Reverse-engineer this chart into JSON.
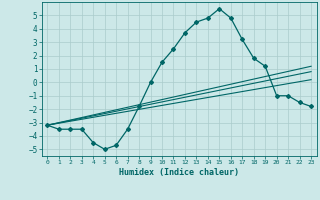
{
  "xlabel": "Humidex (Indice chaleur)",
  "bg_color": "#cce8e8",
  "grid_color": "#aacccc",
  "line_color": "#006666",
  "xlim": [
    -0.5,
    23.5
  ],
  "ylim": [
    -5.5,
    6.0
  ],
  "xticks": [
    0,
    1,
    2,
    3,
    4,
    5,
    6,
    7,
    8,
    9,
    10,
    11,
    12,
    13,
    14,
    15,
    16,
    17,
    18,
    19,
    20,
    21,
    22,
    23
  ],
  "yticks": [
    -5,
    -4,
    -3,
    -2,
    -1,
    0,
    1,
    2,
    3,
    4,
    5
  ],
  "curve1_x": [
    0,
    1,
    2,
    3,
    4,
    5,
    6,
    7,
    8,
    9,
    10,
    11,
    12,
    13,
    14,
    15,
    16,
    17,
    18,
    19,
    20,
    21,
    22,
    23
  ],
  "curve1_y": [
    -3.2,
    -3.5,
    -3.5,
    -3.5,
    -4.5,
    -5.0,
    -4.7,
    -3.5,
    -1.8,
    0.0,
    1.5,
    2.5,
    3.7,
    4.5,
    4.8,
    5.5,
    4.8,
    3.2,
    1.8,
    1.2,
    -1.0,
    -1.0,
    -1.5,
    -1.8
  ],
  "curve2_x": [
    0,
    23
  ],
  "curve2_y": [
    -3.2,
    1.2
  ],
  "curve3_x": [
    0,
    23
  ],
  "curve3_y": [
    -3.2,
    0.8
  ],
  "curve4_x": [
    0,
    23
  ],
  "curve4_y": [
    -3.2,
    0.2
  ]
}
